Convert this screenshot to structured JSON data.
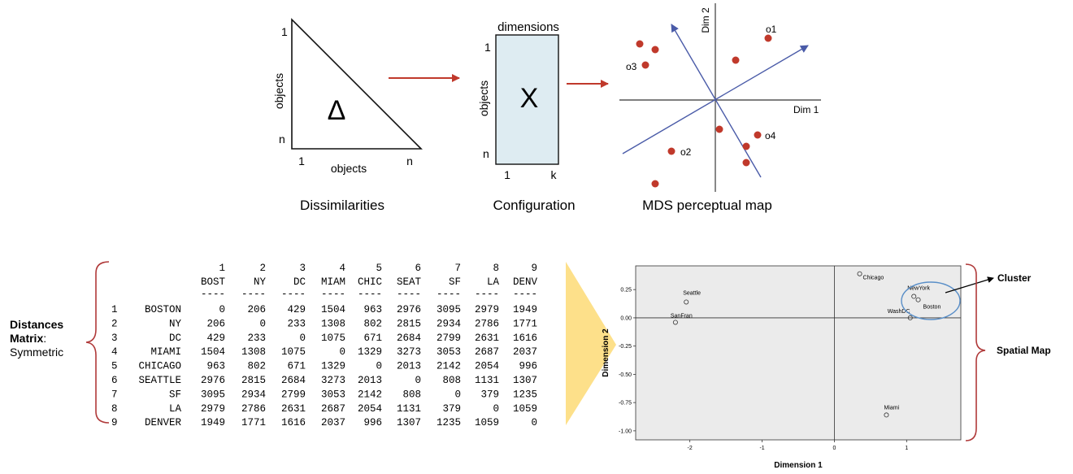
{
  "top": {
    "dissimilarities": {
      "symbol": "Δ",
      "axis_top": "1",
      "axis_n": "n",
      "axis_1": "1",
      "axis_n_right": "n",
      "ylabel": "objects",
      "xlabel": "objects",
      "caption": "Dissimilarities"
    },
    "configuration": {
      "header": "dimensions",
      "symbol": "X",
      "row_1": "1",
      "row_n": "n",
      "col_1": "1",
      "col_k": "k",
      "ylabel": "objects",
      "caption": "Configuration"
    },
    "perceptual_map": {
      "dim1": "Dim 1",
      "dim2": "Dim 2",
      "labels": [
        "o1",
        "o2",
        "o3",
        "o4"
      ],
      "caption": "MDS perceptual map"
    }
  },
  "left_label": {
    "line1": "Distances",
    "line2": "Matrix",
    "colon": ":",
    "line3": "Symmetric"
  },
  "matrix": {
    "col_numbers": [
      "1",
      "2",
      "3",
      "4",
      "5",
      "6",
      "7",
      "8",
      "9"
    ],
    "col_names": [
      "BOST",
      "NY",
      "DC",
      "MIAM",
      "CHIC",
      "SEAT",
      "SF",
      "LA",
      "DENV"
    ],
    "dash": "----",
    "rows": [
      {
        "num": "1",
        "name": "BOSTON",
        "values": [
          "0",
          "206",
          "429",
          "1504",
          "963",
          "2976",
          "3095",
          "2979",
          "1949"
        ]
      },
      {
        "num": "2",
        "name": "NY",
        "values": [
          "206",
          "0",
          "233",
          "1308",
          "802",
          "2815",
          "2934",
          "2786",
          "1771"
        ]
      },
      {
        "num": "3",
        "name": "DC",
        "values": [
          "429",
          "233",
          "0",
          "1075",
          "671",
          "2684",
          "2799",
          "2631",
          "1616"
        ]
      },
      {
        "num": "4",
        "name": "MIAMI",
        "values": [
          "1504",
          "1308",
          "1075",
          "0",
          "1329",
          "3273",
          "3053",
          "2687",
          "2037"
        ]
      },
      {
        "num": "5",
        "name": "CHICAGO",
        "values": [
          "963",
          "802",
          "671",
          "1329",
          "0",
          "2013",
          "2142",
          "2054",
          "996"
        ]
      },
      {
        "num": "6",
        "name": "SEATTLE",
        "values": [
          "2976",
          "2815",
          "2684",
          "3273",
          "2013",
          "0",
          "808",
          "1131",
          "1307"
        ]
      },
      {
        "num": "7",
        "name": "SF",
        "values": [
          "3095",
          "2934",
          "2799",
          "3053",
          "2142",
          "808",
          "0",
          "379",
          "1235"
        ]
      },
      {
        "num": "8",
        "name": "LA",
        "values": [
          "2979",
          "2786",
          "2631",
          "2687",
          "2054",
          "1131",
          "379",
          "0",
          "1059"
        ]
      },
      {
        "num": "9",
        "name": "DENVER",
        "values": [
          "1949",
          "1771",
          "1616",
          "2037",
          "996",
          "1307",
          "1235",
          "1059",
          "0"
        ]
      }
    ]
  },
  "chart_data": {
    "type": "scatter",
    "xlabel": "Dimension 1",
    "ylabel": "Dimension 2",
    "xlim": [
      -2.75,
      1.75
    ],
    "ylim": [
      -1.08,
      0.46
    ],
    "xticks": [
      "-2",
      "-1",
      "0",
      "1"
    ],
    "xtick_values": [
      -2,
      -1,
      0,
      1
    ],
    "yticks": [
      "0.25",
      "0.00",
      "-0.25",
      "-0.50",
      "-0.75",
      "-1.00"
    ],
    "ytick_values": [
      0.25,
      0.0,
      -0.25,
      -0.5,
      -0.75,
      -1.0
    ],
    "points": [
      {
        "label": "Chicago",
        "x": 0.35,
        "y": 0.39
      },
      {
        "label": "NewYork",
        "x": 1.1,
        "y": 0.19
      },
      {
        "label": "Boston",
        "x": 1.16,
        "y": 0.16
      },
      {
        "label": "WashDC",
        "x": 1.05,
        "y": 0.0
      },
      {
        "label": "Seattle",
        "x": -2.05,
        "y": 0.14
      },
      {
        "label": "SanFran",
        "x": -2.2,
        "y": -0.04
      },
      {
        "label": "Miami",
        "x": 0.72,
        "y": -0.86
      }
    ],
    "annotations": [
      "Cluster",
      "Spatial Map"
    ]
  },
  "colors": {
    "arrow_red": "#c0392b",
    "axis_blue": "#4a5ba8",
    "dot_red": "#c0392b",
    "config_fill": "#deecf2",
    "chevron_yellow": "#fde08a",
    "chart_bg": "#ebebeb",
    "brace_red": "#b03a3a",
    "cluster_blue": "#5a8fc8"
  }
}
